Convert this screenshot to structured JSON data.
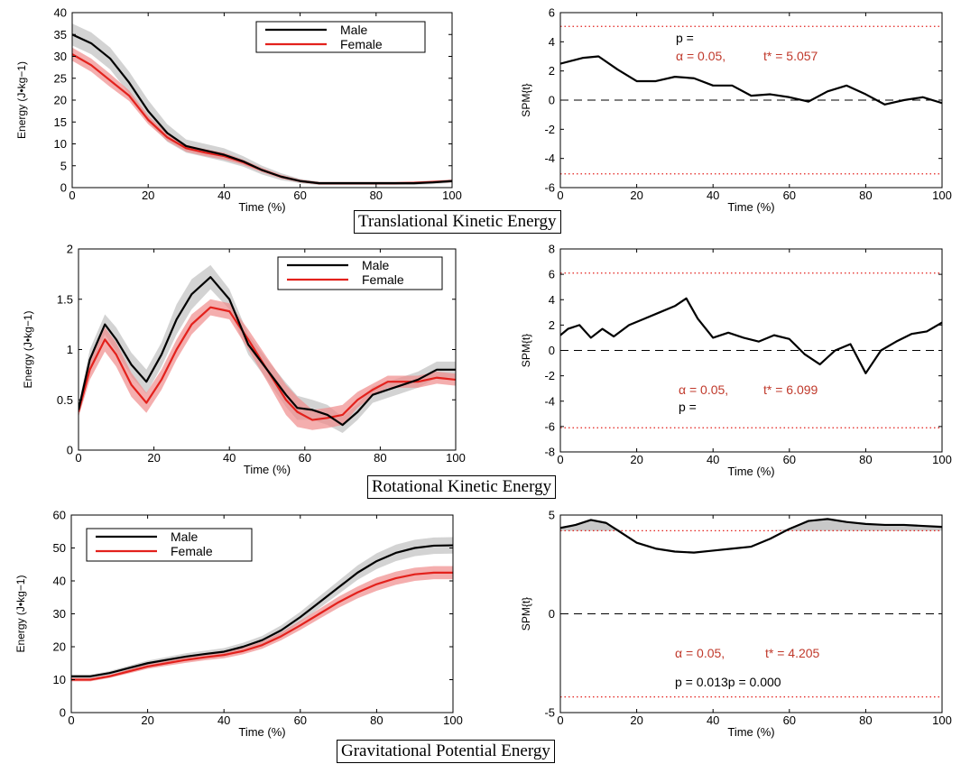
{
  "captions": [
    "Translational Kinetic Energy",
    "Rotational Kinetic Energy",
    "Gravitational Potential Energy"
  ],
  "colors": {
    "male": "#000000",
    "female": "#e3211c",
    "male_band": "#c8c8c8",
    "female_band": "#f08c8c",
    "threshold": "#e3211c",
    "annot": "#c0392b"
  },
  "chart_data": [
    {
      "id": "trans-energy",
      "type": "line",
      "xlabel": "Time (%)",
      "ylabel": "Energy (J•kg−1)",
      "xlim": [
        0,
        100
      ],
      "ylim": [
        0,
        40
      ],
      "xticks": [
        0,
        20,
        40,
        60,
        80,
        100
      ],
      "yticks": [
        0,
        5,
        10,
        15,
        20,
        25,
        30,
        35,
        40
      ],
      "legend": {
        "position": "top-right",
        "entries": [
          "Male",
          "Female"
        ]
      },
      "series": [
        {
          "name": "Male",
          "x": [
            0,
            5,
            10,
            15,
            20,
            25,
            30,
            35,
            40,
            45,
            50,
            55,
            60,
            65,
            70,
            75,
            80,
            85,
            90,
            95,
            100
          ],
          "y": [
            35,
            33,
            29.5,
            24,
            17.5,
            12.5,
            9.5,
            8.5,
            7.5,
            6,
            4,
            2.5,
            1.5,
            1,
            1,
            1,
            1,
            1,
            1,
            1.2,
            1.5
          ],
          "band": [
            2.5,
            2.5,
            2.5,
            2.5,
            2.5,
            2,
            1.5,
            1.5,
            1.5,
            1.2,
            1,
            0.8,
            0.5,
            0.4,
            0.4,
            0.4,
            0.4,
            0.4,
            0.4,
            0.4,
            0.4
          ]
        },
        {
          "name": "Female",
          "x": [
            0,
            5,
            10,
            15,
            20,
            25,
            30,
            35,
            40,
            45,
            50,
            55,
            60,
            65,
            70,
            75,
            80,
            85,
            90,
            95,
            100
          ],
          "y": [
            30.5,
            28,
            24.5,
            21,
            15.5,
            11.5,
            9,
            8,
            7.2,
            5.8,
            4,
            2.5,
            1.5,
            1,
            1,
            1,
            1,
            1,
            1.1,
            1.3,
            1.5
          ],
          "band": [
            1.5,
            1.5,
            1.5,
            1.2,
            1,
            0.8,
            0.8,
            0.8,
            0.8,
            0.6,
            0.5,
            0.4,
            0.3,
            0.3,
            0.3,
            0.3,
            0.3,
            0.3,
            0.3,
            0.3,
            0.3
          ]
        }
      ]
    },
    {
      "id": "trans-spm",
      "type": "line",
      "xlabel": "Time (%)",
      "ylabel": "SPM{t}",
      "xlim": [
        0,
        100
      ],
      "ylim": [
        -6,
        6
      ],
      "xticks": [
        0,
        20,
        40,
        60,
        80,
        100
      ],
      "yticks": [
        -6,
        -4,
        -2,
        0,
        2,
        4,
        6
      ],
      "threshold": 5.057,
      "zero_line": true,
      "series": [
        {
          "name": "",
          "x": [
            0,
            3,
            6,
            10,
            15,
            20,
            25,
            30,
            35,
            40,
            45,
            50,
            55,
            60,
            65,
            70,
            75,
            80,
            85,
            90,
            95,
            100
          ],
          "y": [
            2.5,
            2.7,
            2.9,
            3.0,
            2.1,
            1.3,
            1.3,
            1.6,
            1.5,
            1.0,
            1.0,
            0.3,
            0.4,
            0.2,
            -0.1,
            0.6,
            1.0,
            0.4,
            -0.3,
            0.0,
            0.2,
            -0.2
          ]
        }
      ],
      "annotations": {
        "p": "p =",
        "alpha": "α  = 0.05,",
        "tstar": "t* = 5.057"
      }
    },
    {
      "id": "rot-energy",
      "type": "line",
      "xlabel": "Time (%)",
      "ylabel": "Energy (J•kg−1)",
      "xlim": [
        0,
        100
      ],
      "ylim": [
        0,
        2
      ],
      "xticks": [
        0,
        20,
        40,
        60,
        80,
        100
      ],
      "yticks": [
        0,
        0.5,
        1,
        1.5,
        2
      ],
      "legend": {
        "position": "top-right",
        "entries": [
          "Male",
          "Female"
        ]
      },
      "series": [
        {
          "name": "Male",
          "x": [
            0,
            3,
            7,
            10,
            14,
            18,
            22,
            26,
            30,
            35,
            40,
            45,
            50,
            55,
            58,
            62,
            66,
            70,
            74,
            78,
            82,
            86,
            90,
            95,
            100
          ],
          "y": [
            0.4,
            0.9,
            1.25,
            1.1,
            0.85,
            0.68,
            0.95,
            1.3,
            1.55,
            1.72,
            1.5,
            1.05,
            0.8,
            0.55,
            0.42,
            0.4,
            0.35,
            0.25,
            0.38,
            0.55,
            0.6,
            0.65,
            0.7,
            0.8,
            0.8
          ],
          "band": [
            0.05,
            0.1,
            0.1,
            0.12,
            0.12,
            0.12,
            0.12,
            0.15,
            0.15,
            0.12,
            0.1,
            0.1,
            0.1,
            0.12,
            0.12,
            0.1,
            0.1,
            0.08,
            0.08,
            0.08,
            0.08,
            0.08,
            0.08,
            0.08,
            0.08
          ]
        },
        {
          "name": "Female",
          "x": [
            0,
            3,
            7,
            10,
            14,
            18,
            22,
            26,
            30,
            35,
            40,
            45,
            50,
            55,
            58,
            62,
            66,
            70,
            74,
            78,
            82,
            86,
            90,
            95,
            100
          ],
          "y": [
            0.38,
            0.8,
            1.1,
            0.95,
            0.65,
            0.47,
            0.7,
            1.0,
            1.25,
            1.42,
            1.38,
            1.1,
            0.8,
            0.5,
            0.38,
            0.3,
            0.32,
            0.35,
            0.5,
            0.6,
            0.68,
            0.68,
            0.68,
            0.72,
            0.7
          ],
          "band": [
            0.05,
            0.1,
            0.12,
            0.12,
            0.12,
            0.1,
            0.1,
            0.1,
            0.1,
            0.08,
            0.08,
            0.1,
            0.12,
            0.15,
            0.15,
            0.1,
            0.1,
            0.1,
            0.08,
            0.06,
            0.06,
            0.06,
            0.06,
            0.06,
            0.06
          ]
        }
      ]
    },
    {
      "id": "rot-spm",
      "type": "line",
      "xlabel": "Time (%)",
      "ylabel": "SPM{t}",
      "xlim": [
        0,
        100
      ],
      "ylim": [
        -8,
        8
      ],
      "xticks": [
        0,
        20,
        40,
        60,
        80,
        100
      ],
      "yticks": [
        -8,
        -6,
        -4,
        -2,
        0,
        2,
        4,
        6,
        8
      ],
      "threshold": 6.099,
      "zero_line": true,
      "series": [
        {
          "name": "",
          "x": [
            0,
            2,
            5,
            8,
            11,
            14,
            18,
            22,
            26,
            30,
            33,
            36,
            40,
            44,
            48,
            52,
            56,
            60,
            64,
            68,
            72,
            76,
            80,
            84,
            88,
            92,
            96,
            100
          ],
          "y": [
            1.2,
            1.7,
            2.0,
            1.0,
            1.7,
            1.1,
            2.0,
            2.5,
            3.0,
            3.5,
            4.1,
            2.5,
            1.0,
            1.4,
            1.0,
            0.7,
            1.2,
            0.9,
            -0.3,
            -1.1,
            0.0,
            0.5,
            -1.8,
            0.0,
            0.7,
            1.3,
            1.5,
            2.2
          ]
        }
      ],
      "annotations": {
        "p": "p =",
        "alpha": "α  = 0.05,",
        "tstar": "t* = 6.099"
      }
    },
    {
      "id": "grav-energy",
      "type": "line",
      "xlabel": "Time (%)",
      "ylabel": "Energy (J•kg−1)",
      "xlim": [
        0,
        100
      ],
      "ylim": [
        0,
        60
      ],
      "xticks": [
        0,
        20,
        40,
        60,
        80,
        100
      ],
      "yticks": [
        0,
        10,
        20,
        30,
        40,
        50,
        60
      ],
      "legend": {
        "position": "top-left",
        "entries": [
          "Male",
          "Female"
        ]
      },
      "series": [
        {
          "name": "Male",
          "x": [
            0,
            5,
            10,
            15,
            20,
            25,
            30,
            35,
            40,
            45,
            50,
            55,
            60,
            65,
            70,
            75,
            80,
            85,
            90,
            95,
            100
          ],
          "y": [
            11,
            11,
            12,
            13.5,
            15,
            16,
            17,
            17.8,
            18.5,
            20,
            22,
            25,
            29,
            33.5,
            38,
            42.5,
            46,
            48.5,
            50,
            50.7,
            50.8
          ],
          "band": [
            0.5,
            0.5,
            0.6,
            0.7,
            0.8,
            0.9,
            1,
            1,
            1.1,
            1.2,
            1.3,
            1.5,
            1.6,
            1.8,
            2,
            2.2,
            2.4,
            2.5,
            2.5,
            2.5,
            2.5
          ]
        },
        {
          "name": "Female",
          "x": [
            0,
            5,
            10,
            15,
            20,
            25,
            30,
            35,
            40,
            45,
            50,
            55,
            60,
            65,
            70,
            75,
            80,
            85,
            90,
            95,
            100
          ],
          "y": [
            10,
            10,
            11,
            12.5,
            14,
            15,
            16,
            16.8,
            17.5,
            18.7,
            20.5,
            23.2,
            26.5,
            30,
            33.5,
            36.5,
            39,
            40.8,
            42,
            42.5,
            42.5
          ],
          "band": [
            0.5,
            0.5,
            0.5,
            0.6,
            0.7,
            0.8,
            0.9,
            0.9,
            1,
            1,
            1.1,
            1.2,
            1.4,
            1.5,
            1.7,
            1.8,
            2,
            2,
            2,
            2,
            2
          ]
        }
      ]
    },
    {
      "id": "grav-spm",
      "type": "line",
      "xlabel": "Time (%)",
      "ylabel": "SPM{t}",
      "xlim": [
        0,
        100
      ],
      "ylim": [
        -5,
        5
      ],
      "xticks": [
        0,
        20,
        40,
        60,
        80,
        100
      ],
      "yticks": [
        -5,
        0,
        5
      ],
      "threshold": 4.205,
      "zero_line": true,
      "series": [
        {
          "name": "",
          "x": [
            0,
            4,
            8,
            12,
            16,
            20,
            25,
            30,
            35,
            40,
            45,
            50,
            55,
            60,
            65,
            70,
            75,
            80,
            85,
            90,
            95,
            100
          ],
          "y": [
            4.35,
            4.5,
            4.75,
            4.6,
            4.1,
            3.6,
            3.3,
            3.15,
            3.1,
            3.2,
            3.3,
            3.4,
            3.8,
            4.3,
            4.7,
            4.8,
            4.65,
            4.55,
            4.5,
            4.5,
            4.45,
            4.4
          ]
        }
      ],
      "annotations": {
        "alpha": "α  = 0.05,",
        "tstar": "t* = 4.205",
        "p": "p = 0.013p = 0.000"
      }
    }
  ]
}
